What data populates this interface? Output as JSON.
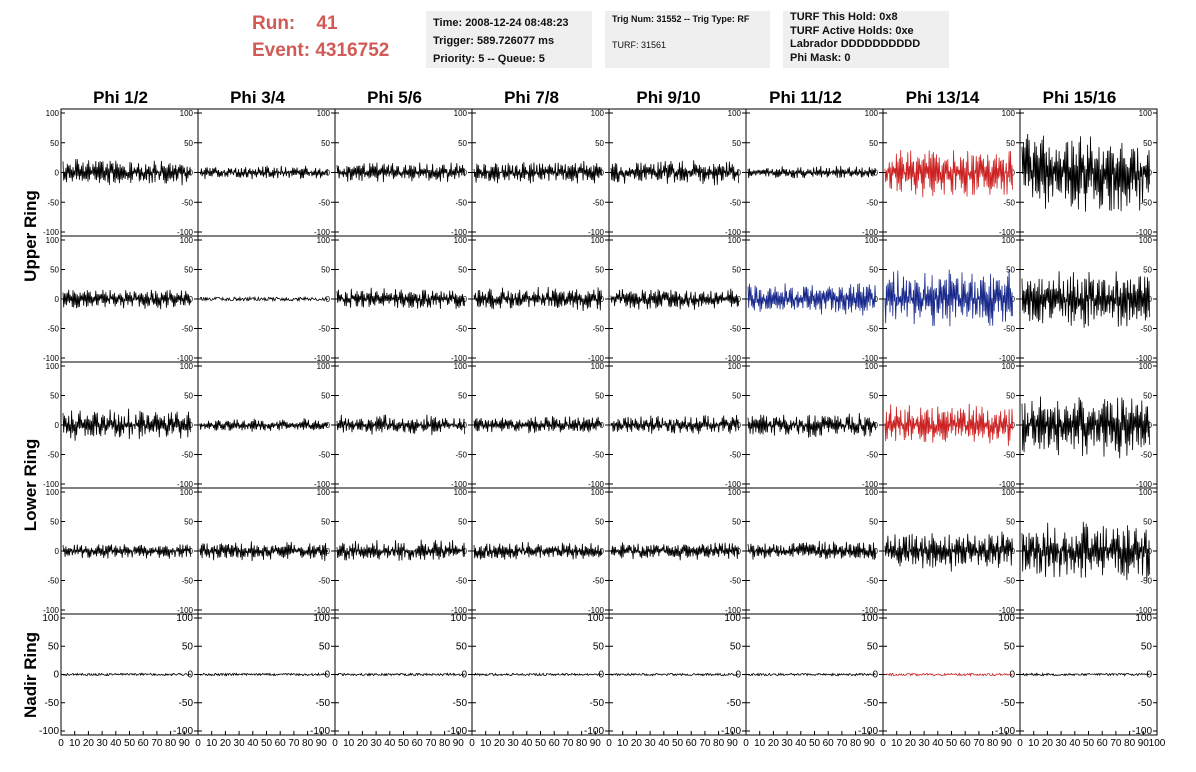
{
  "header": {
    "run_label": "Run:",
    "run_value": "41",
    "event_label": "Event:",
    "event_value": "4316752",
    "colors": {
      "run_text": "#d05a56",
      "box_bg": "#efefef"
    }
  },
  "info_box_1": {
    "time": "Time: 2008-12-24 08:48:23",
    "trigger": "Trigger: 589.726077 ms",
    "priority": "Priority: 5 -- Queue: 5"
  },
  "info_box_2": {
    "trig": "Trig Num: 31552 -- Trig Type: RF",
    "turf": "TURF: 31561"
  },
  "info_box_3": {
    "hold": "TURF This Hold: 0x8",
    "active": "TURF Active Holds: 0xe",
    "labrador": "Labrador DDDDDDDDDD",
    "phimask": "Phi Mask: 0"
  },
  "columns": [
    "Phi 1/2",
    "Phi 3/4",
    "Phi 5/6",
    "Phi 7/8",
    "Phi 9/10",
    "Phi 11/12",
    "Phi 13/14",
    "Phi 15/16"
  ],
  "rings": [
    "Upper Ring",
    "Lower Ring",
    "Nadir Ring"
  ],
  "chart_data": {
    "type": "line",
    "rows": 5,
    "cols": 8,
    "xlim": [
      0,
      100
    ],
    "ylim": [
      -100,
      100
    ],
    "x_ticks": [
      0,
      10,
      20,
      30,
      40,
      50,
      60,
      70,
      80,
      90,
      100
    ],
    "y_ticks": [
      100,
      50,
      0,
      -50,
      -100
    ],
    "grid": false,
    "line_colors": {
      "normal": "#000000",
      "red": "#cc2222",
      "blue": "#1a2a8c"
    },
    "panel_amplitudes": [
      [
        25,
        12,
        18,
        20,
        22,
        12,
        45,
        70
      ],
      [
        18,
        3,
        20,
        22,
        20,
        30,
        55,
        55
      ],
      [
        28,
        12,
        18,
        16,
        18,
        22,
        38,
        60
      ],
      [
        14,
        18,
        20,
        16,
        16,
        18,
        38,
        55
      ],
      [
        2,
        2,
        2,
        2,
        2,
        2,
        2,
        2
      ]
    ],
    "panel_colors": [
      [
        "normal",
        "normal",
        "normal",
        "normal",
        "normal",
        "normal",
        "red",
        "normal"
      ],
      [
        "normal",
        "normal",
        "normal",
        "normal",
        "normal",
        "blue",
        "blue",
        "normal"
      ],
      [
        "normal",
        "normal",
        "normal",
        "normal",
        "normal",
        "normal",
        "red",
        "normal"
      ],
      [
        "normal",
        "normal",
        "normal",
        "normal",
        "normal",
        "normal",
        "normal",
        "normal"
      ],
      [
        "normal",
        "normal",
        "normal",
        "normal",
        "normal",
        "normal",
        "red",
        "normal"
      ]
    ]
  }
}
